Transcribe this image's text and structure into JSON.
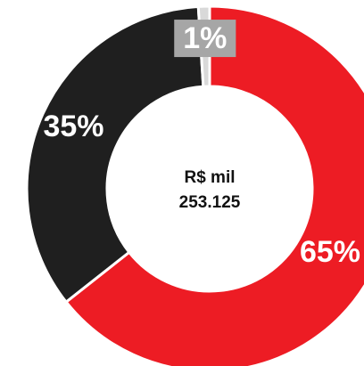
{
  "chart_data": {
    "type": "donut",
    "center_text": [
      "R$ mil",
      "253.125"
    ],
    "categories": [
      null,
      null,
      null
    ],
    "values": [
      65,
      35,
      1
    ],
    "value_labels": [
      "65%",
      "35%",
      "1%"
    ],
    "colors": [
      "#ed1c24",
      "#1f1f1f",
      "#d9d9d9"
    ]
  }
}
